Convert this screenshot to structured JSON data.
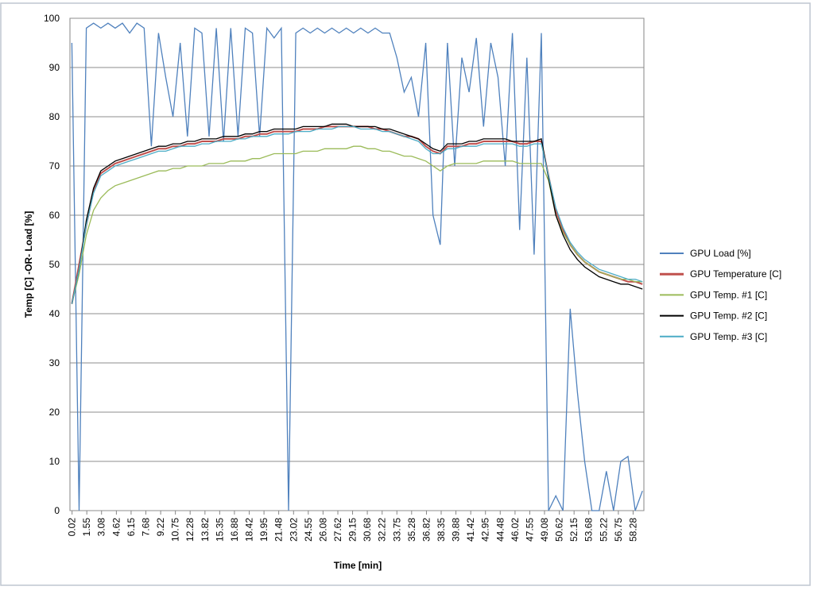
{
  "chart_data": {
    "type": "line",
    "x_label": "Time [min]",
    "y_label": "Temp [C] -OR- Load [%]",
    "x": [
      0,
      0.75,
      1.5,
      2.25,
      3,
      3.75,
      4.5,
      5.25,
      6,
      6.75,
      7.5,
      8.25,
      9,
      9.75,
      10.5,
      11.25,
      12,
      12.75,
      13.5,
      14.25,
      15,
      15.75,
      16.5,
      17.25,
      18,
      18.75,
      19.5,
      20.25,
      21,
      21.75,
      22.5,
      23.25,
      24,
      24.75,
      25.5,
      26.25,
      27,
      27.75,
      28.5,
      29.25,
      30,
      30.75,
      31.5,
      32.25,
      33,
      33.75,
      34.5,
      35.25,
      36,
      36.75,
      37.5,
      38.25,
      39,
      39.75,
      40.5,
      41.25,
      42,
      42.75,
      43.5,
      44.25,
      45,
      45.75,
      46.5,
      47.25,
      48,
      48.75,
      49.5,
      50.25,
      51,
      51.75,
      52.5,
      53.25,
      54,
      54.75,
      55.5,
      56.25,
      57,
      57.75,
      58.5,
      59.25
    ],
    "series": [
      {
        "name": "GPU Load [%]",
        "color": "#4f81bd",
        "values": [
          95,
          0,
          98,
          99,
          98,
          99,
          98,
          99,
          97,
          99,
          98,
          74,
          97,
          88,
          80,
          95,
          76,
          98,
          97,
          76,
          98,
          75,
          98,
          76,
          98,
          97,
          76,
          98,
          96,
          98,
          0,
          97,
          98,
          97,
          98,
          97,
          98,
          97,
          98,
          97,
          98,
          97,
          98,
          97,
          97,
          92,
          85,
          88,
          80,
          95,
          60,
          54,
          95,
          70,
          92,
          85,
          96,
          78,
          95,
          88,
          70,
          97,
          57,
          92,
          52,
          97,
          0,
          3,
          0,
          41,
          24,
          10,
          0,
          0,
          8,
          0,
          10,
          11,
          0,
          4
        ]
      },
      {
        "name": "GPU Temperature [C]",
        "color": "#c0504d",
        "values": [
          42,
          50,
          58,
          65,
          68.5,
          69.5,
          70.5,
          71,
          71.5,
          72,
          72.5,
          73,
          73.5,
          73.5,
          74,
          74,
          74.5,
          74.5,
          75,
          75,
          75,
          75.5,
          75.5,
          75.5,
          76,
          76,
          76.5,
          76.5,
          77,
          77,
          77,
          77,
          77.5,
          77.5,
          77.5,
          78,
          78,
          78,
          78,
          78,
          78,
          78,
          77.5,
          77.5,
          77,
          76.5,
          76,
          76,
          75.5,
          74,
          73,
          72.5,
          74,
          74,
          74,
          74.5,
          74.5,
          75,
          75,
          75,
          75,
          75,
          74.5,
          74.5,
          75,
          75,
          68,
          61,
          57,
          54,
          52,
          50.5,
          49.5,
          48.5,
          48,
          47.5,
          47,
          46.5,
          46.5,
          46
        ]
      },
      {
        "name": "GPU Temp. #1 [C]",
        "color": "#9bbb59",
        "values": [
          42,
          48,
          56,
          61,
          63.5,
          65,
          66,
          66.5,
          67,
          67.5,
          68,
          68.5,
          69,
          69,
          69.5,
          69.5,
          70,
          70,
          70,
          70.5,
          70.5,
          70.5,
          71,
          71,
          71,
          71.5,
          71.5,
          72,
          72.5,
          72.5,
          72.5,
          72.5,
          73,
          73,
          73,
          73.5,
          73.5,
          73.5,
          73.5,
          74,
          74,
          73.5,
          73.5,
          73,
          73,
          72.5,
          72,
          72,
          71.5,
          71,
          70,
          69,
          70,
          70.5,
          70.5,
          70.5,
          70.5,
          71,
          71,
          71,
          71,
          71,
          70.5,
          70.5,
          70.5,
          70.5,
          67,
          60,
          56.5,
          54,
          52,
          50.5,
          49.5,
          48.5,
          48,
          47.5,
          47,
          47,
          46.5,
          46.5
        ]
      },
      {
        "name": "GPU Temp. #2 [C]",
        "color": "#000000",
        "values": [
          42,
          49,
          59,
          65.5,
          69,
          70,
          71,
          71.5,
          72,
          72.5,
          73,
          73.5,
          74,
          74,
          74.5,
          74.5,
          75,
          75,
          75.5,
          75.5,
          75.5,
          76,
          76,
          76,
          76.5,
          76.5,
          77,
          77,
          77.5,
          77.5,
          77.5,
          77.5,
          78,
          78,
          78,
          78,
          78.5,
          78.5,
          78.5,
          78,
          78,
          78,
          78,
          77.5,
          77.5,
          77,
          76.5,
          76,
          75.5,
          74.5,
          73.5,
          73,
          74.5,
          74.5,
          74.5,
          75,
          75,
          75.5,
          75.5,
          75.5,
          75.5,
          75,
          75,
          75,
          75,
          75.5,
          67.5,
          60,
          56,
          53,
          51,
          49.5,
          48.5,
          47.5,
          47,
          46.5,
          46,
          46,
          45.5,
          45
        ]
      },
      {
        "name": "GPU Temp. #3 [C]",
        "color": "#4bacc6",
        "values": [
          42,
          49,
          58,
          64.5,
          68,
          69,
          70,
          70.5,
          71,
          71.5,
          72,
          72.5,
          73,
          73,
          73.5,
          74,
          74,
          74,
          74.5,
          74.5,
          75,
          75,
          75,
          75.5,
          75.5,
          76,
          76,
          76,
          76.5,
          76.5,
          76.5,
          77,
          77,
          77,
          77.5,
          77.5,
          77.5,
          78,
          78,
          78,
          77.5,
          77.5,
          77.5,
          77,
          77,
          76.5,
          76,
          75.5,
          75,
          73.5,
          72.5,
          72.5,
          73.5,
          73.5,
          74,
          74,
          74,
          74.5,
          74.5,
          74.5,
          74.5,
          74.5,
          74,
          74,
          74.5,
          74.5,
          68,
          61.5,
          57.5,
          54.5,
          52.5,
          51,
          50,
          49,
          48.5,
          48,
          47.5,
          47,
          47,
          46.5
        ]
      }
    ],
    "xlim": [
      -0.2,
      59.4
    ],
    "xticks": [
      0.02,
      1.55,
      3.08,
      4.62,
      6.15,
      7.68,
      9.22,
      10.75,
      12.28,
      13.82,
      15.35,
      16.88,
      18.42,
      19.95,
      21.48,
      23.02,
      24.55,
      26.08,
      27.62,
      29.15,
      30.68,
      32.22,
      33.75,
      35.28,
      36.82,
      38.35,
      39.88,
      41.42,
      42.95,
      44.48,
      46.02,
      47.55,
      49.08,
      50.62,
      52.15,
      53.68,
      55.22,
      56.75,
      58.28
    ],
    "ylim": [
      0,
      100
    ],
    "yticks": [
      0,
      10,
      20,
      30,
      40,
      50,
      60,
      70,
      80,
      90,
      100
    ],
    "grid": true,
    "legend": "right"
  }
}
